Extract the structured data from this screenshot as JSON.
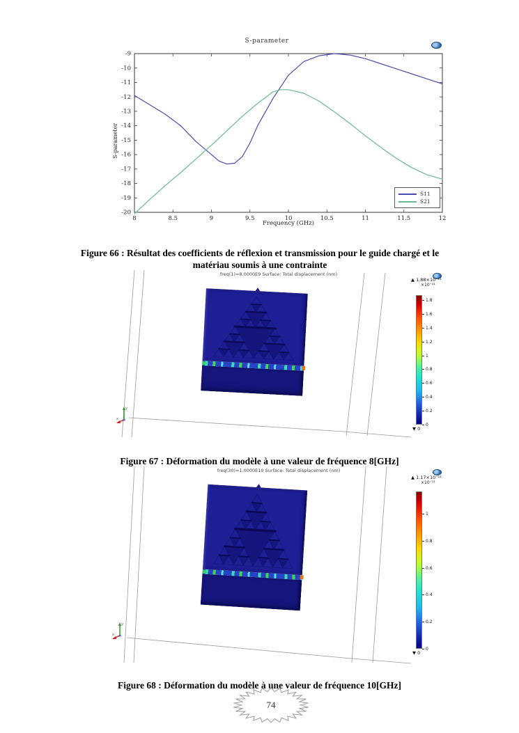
{
  "page": {
    "number": "74"
  },
  "chart_data": {
    "type": "line",
    "title": "S-parameter",
    "xlabel": "Frequency (GHz)",
    "ylabel": "S-parameter",
    "xlim": [
      8,
      12
    ],
    "ylim": [
      -20,
      -9
    ],
    "xticks": [
      8,
      8.5,
      9,
      9.5,
      10,
      10.5,
      11,
      11.5,
      12
    ],
    "yticks": [
      -9,
      -10,
      -11,
      -12,
      -13,
      -14,
      -15,
      -16,
      -17,
      -18,
      -19,
      -20
    ],
    "grid": false,
    "legend_position": "bottom-right",
    "series": [
      {
        "name": "S11",
        "color": "#4c4cae",
        "x": [
          8,
          8.2,
          8.4,
          8.6,
          8.8,
          9.0,
          9.1,
          9.2,
          9.3,
          9.4,
          9.5,
          9.6,
          9.8,
          10.0,
          10.2,
          10.4,
          10.6,
          10.8,
          11.0,
          11.2,
          11.4,
          11.6,
          11.8,
          12.0
        ],
        "y": [
          -11.9,
          -12.55,
          -13.2,
          -14.0,
          -15.1,
          -16.0,
          -16.45,
          -16.65,
          -16.6,
          -16.15,
          -15.2,
          -14.0,
          -12.1,
          -10.5,
          -9.55,
          -9.15,
          -9.0,
          -9.1,
          -9.35,
          -9.7,
          -10.05,
          -10.4,
          -10.75,
          -11.1
        ]
      },
      {
        "name": "S21",
        "color": "#6cba8c",
        "x": [
          8,
          8.2,
          8.4,
          8.6,
          8.8,
          9.0,
          9.2,
          9.4,
          9.6,
          9.8,
          9.9,
          10.0,
          10.2,
          10.4,
          10.6,
          10.8,
          11.0,
          11.2,
          11.4,
          11.6,
          11.8,
          12.0
        ],
        "y": [
          -20.1,
          -19.1,
          -18.15,
          -17.25,
          -16.3,
          -15.35,
          -14.35,
          -13.35,
          -12.45,
          -11.65,
          -11.5,
          -11.5,
          -11.75,
          -12.3,
          -13.05,
          -13.85,
          -14.7,
          -15.5,
          -16.25,
          -16.9,
          -17.4,
          -17.7
        ]
      }
    ]
  },
  "captions": {
    "fig66": "Figure 66 : Résultat des coefficients de réflexion et transmission pour le guide chargé et le matériau soumis à une contrainte",
    "fig67": "Figure 67 : Déformation du modèle à une valeur de fréquence 8[GHz]",
    "fig68": "Figure 68 : Déformation du modèle à une valeur de fréquence 10[GHz]"
  },
  "comsol_a": {
    "title": "freq(1)=8.0000E9  Surface: Total displacement (nm)",
    "colorbar": {
      "max_label": "▲ 1.88×10⁻¹¹",
      "scale_label": "×10⁻¹¹",
      "max_value": 1.88,
      "ticks": [
        1.8,
        1.6,
        1.4,
        1.2,
        1,
        0.8,
        0.6,
        0.4,
        0.2,
        0
      ],
      "min_label": "▼ 0"
    }
  },
  "comsol_b": {
    "title": "freq(30)=1.0000E10  Surface: Total displacement (nm)",
    "colorbar": {
      "max_label": "▲ 1.17×10⁻¹¹",
      "scale_label": "×10⁻¹¹",
      "max_value": 1.17,
      "ticks": [
        1,
        0.8,
        0.6,
        0.4,
        0.2,
        0
      ],
      "min_label": "▼ 0"
    }
  }
}
